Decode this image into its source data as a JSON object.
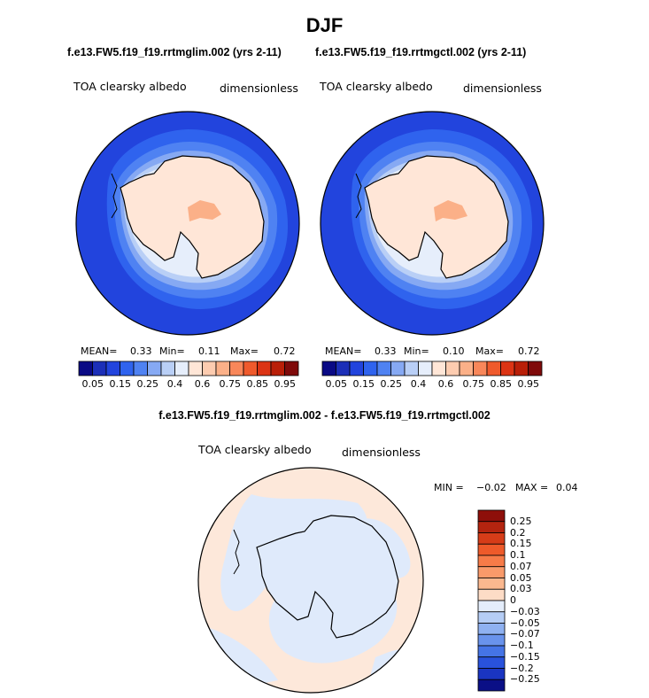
{
  "title": "DJF",
  "panels": [
    {
      "case": "f.e13.FW5.f19_f19.rrtmglim.002 (yrs 2-11)",
      "variable": "TOA clearsky albedo",
      "units": "dimensionless",
      "mean_label": "MEAN=",
      "mean": "0.33",
      "min_label": "Min=",
      "min": "0.11",
      "max_label": "Max=",
      "max": "0.72"
    },
    {
      "case": "f.e13.FW5.f19_f19.rrtmgctl.002 (yrs 2-11)",
      "variable": "TOA clearsky albedo",
      "units": "dimensionless",
      "mean_label": "MEAN=",
      "mean": "0.33",
      "min_label": "Min=",
      "min": "0.10",
      "max_label": "Max=",
      "max": "0.72"
    }
  ],
  "colorbar": {
    "colors": [
      "#0a0a85",
      "#1c2fb8",
      "#2244dd",
      "#2f63ee",
      "#4f82f2",
      "#86a9f3",
      "#b9cff6",
      "#e6eefb",
      "#ffe6d7",
      "#fdccb0",
      "#fbb088",
      "#f8875a",
      "#ef5a2c",
      "#dc3414",
      "#b91f08",
      "#7f0a0a"
    ],
    "tick_labels": [
      "0.05",
      "0.15",
      "0.25",
      "0.4",
      "0.6",
      "0.75",
      "0.85",
      "0.95"
    ]
  },
  "difference": {
    "title": "f.e13.FW5.f19_f19.rrtmglim.002 - f.e13.FW5.f19_f19.rrtmgctl.002",
    "variable": "TOA clearsky albedo",
    "units": "dimensionless",
    "min_label": "MIN =",
    "min": "−0.02",
    "max_label": "MAX =",
    "max": "0.04",
    "colorbar": {
      "colors_top_to_bottom": [
        "#8e0f0a",
        "#b3240f",
        "#d63c18",
        "#ee5a2a",
        "#f77b48",
        "#f99a6a",
        "#fbb88f",
        "#fddcc6",
        "#e4edfb",
        "#b5cdf5",
        "#8fb1f1",
        "#6993ec",
        "#4574e6",
        "#2952dc",
        "#1a35c2",
        "#0a0f86"
      ],
      "labels": [
        "0.25",
        "0.2",
        "0.15",
        "0.1",
        "0.07",
        "0.05",
        "0.03",
        "0",
        "−0.03",
        "−0.05",
        "−0.07",
        "−0.1",
        "−0.15",
        "−0.2",
        "−0.25"
      ]
    }
  }
}
